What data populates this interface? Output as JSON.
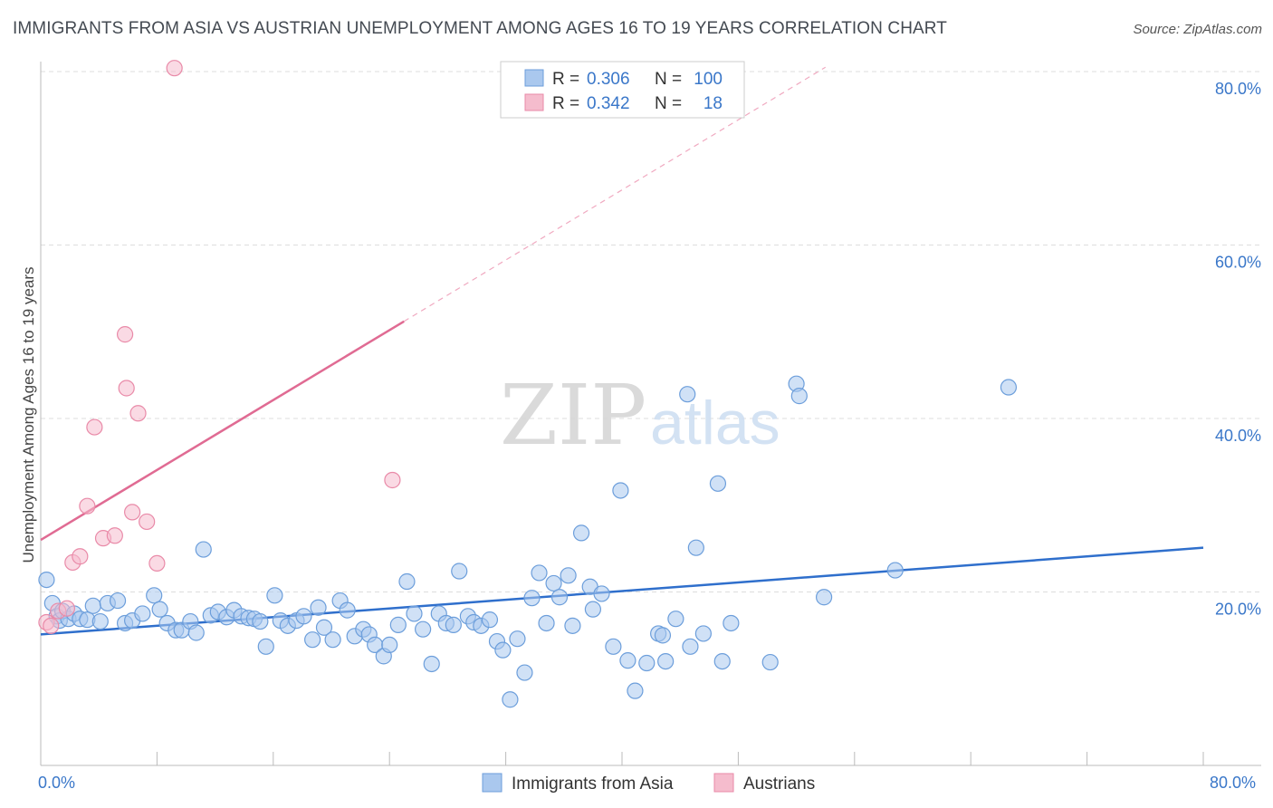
{
  "header": {
    "title": "IMMIGRANTS FROM ASIA VS AUSTRIAN UNEMPLOYMENT AMONG AGES 16 TO 19 YEARS CORRELATION CHART",
    "source": "Source: ZipAtlas.com"
  },
  "watermark": {
    "zip": "ZIP",
    "atlas": "atlas"
  },
  "colors": {
    "blue_fill": "#aac8ee",
    "blue_stroke": "#6c9edb",
    "blue_line": "#2f6fcc",
    "pink_fill": "#f5bccd",
    "pink_stroke": "#e98aa8",
    "pink_line": "#e06b93",
    "tick_label": "#3a77c9",
    "grid": "#dddddd"
  },
  "legend": {
    "rows": [
      {
        "r_label": "R =",
        "r_value": "0.306",
        "n_label": "N =",
        "n_value": "100"
      },
      {
        "r_label": "R =",
        "r_value": "0.342",
        "n_label": "N =",
        "n_value": "18"
      }
    ]
  },
  "chart_data": {
    "type": "scatter",
    "title": "IMMIGRANTS FROM ASIA VS AUSTRIAN UNEMPLOYMENT AMONG AGES 16 TO 19 YEARS CORRELATION CHART",
    "xlabel": "",
    "ylabel": "Unemployment Among Ages 16 to 19 years",
    "xlim": [
      0,
      80
    ],
    "ylim": [
      0,
      80
    ],
    "x_tick_labels": {
      "min": "0.0%",
      "max": "80.0%"
    },
    "y_ticks": [
      20,
      40,
      60,
      80
    ],
    "y_tick_labels": [
      "20.0%",
      "40.0%",
      "60.0%",
      "80.0%"
    ],
    "series": [
      {
        "name": "Immigrants from Asia",
        "color": "#aac8ee",
        "r": 0.306,
        "n": 100,
        "trend": {
          "x0": 0,
          "y0": 15.1,
          "x1": 80,
          "y1": 25.1
        },
        "points": [
          [
            0.4,
            21.4
          ],
          [
            0.8,
            18.7
          ],
          [
            1.1,
            17.2
          ],
          [
            1.3,
            16.7
          ],
          [
            1.5,
            17.8
          ],
          [
            1.9,
            16.9
          ],
          [
            2.3,
            17.5
          ],
          [
            2.7,
            16.9
          ],
          [
            3.2,
            16.8
          ],
          [
            3.6,
            18.4
          ],
          [
            4.1,
            16.6
          ],
          [
            4.6,
            18.7
          ],
          [
            5.3,
            19.0
          ],
          [
            5.8,
            16.4
          ],
          [
            6.3,
            16.7
          ],
          [
            7.0,
            17.5
          ],
          [
            7.8,
            19.6
          ],
          [
            8.2,
            18.0
          ],
          [
            8.7,
            16.4
          ],
          [
            9.3,
            15.6
          ],
          [
            9.7,
            15.6
          ],
          [
            10.3,
            16.6
          ],
          [
            10.7,
            15.3
          ],
          [
            11.2,
            24.9
          ],
          [
            11.7,
            17.3
          ],
          [
            12.2,
            17.7
          ],
          [
            12.8,
            17.1
          ],
          [
            13.3,
            17.9
          ],
          [
            13.8,
            17.2
          ],
          [
            14.3,
            17.0
          ],
          [
            14.7,
            16.9
          ],
          [
            15.1,
            16.6
          ],
          [
            15.5,
            13.7
          ],
          [
            16.1,
            19.6
          ],
          [
            16.5,
            16.7
          ],
          [
            17.0,
            16.1
          ],
          [
            17.6,
            16.7
          ],
          [
            18.1,
            17.2
          ],
          [
            18.7,
            14.5
          ],
          [
            19.1,
            18.2
          ],
          [
            19.5,
            15.9
          ],
          [
            20.1,
            14.5
          ],
          [
            20.6,
            19.0
          ],
          [
            21.1,
            17.9
          ],
          [
            21.6,
            14.9
          ],
          [
            22.2,
            15.7
          ],
          [
            22.6,
            15.1
          ],
          [
            23.0,
            13.9
          ],
          [
            23.6,
            12.6
          ],
          [
            24.0,
            13.9
          ],
          [
            24.6,
            16.2
          ],
          [
            25.2,
            21.2
          ],
          [
            25.7,
            17.5
          ],
          [
            26.3,
            15.7
          ],
          [
            26.9,
            11.7
          ],
          [
            27.4,
            17.5
          ],
          [
            27.9,
            16.4
          ],
          [
            28.4,
            16.2
          ],
          [
            28.8,
            22.4
          ],
          [
            29.4,
            17.2
          ],
          [
            29.8,
            16.5
          ],
          [
            30.3,
            16.1
          ],
          [
            30.9,
            16.8
          ],
          [
            31.4,
            14.3
          ],
          [
            31.8,
            13.3
          ],
          [
            32.3,
            7.6
          ],
          [
            32.8,
            14.6
          ],
          [
            33.3,
            10.7
          ],
          [
            33.8,
            19.3
          ],
          [
            34.3,
            22.2
          ],
          [
            34.8,
            16.4
          ],
          [
            35.3,
            21.0
          ],
          [
            35.7,
            19.4
          ],
          [
            36.3,
            21.9
          ],
          [
            36.6,
            16.1
          ],
          [
            37.2,
            26.8
          ],
          [
            37.8,
            20.6
          ],
          [
            38.0,
            18.0
          ],
          [
            38.6,
            19.8
          ],
          [
            39.4,
            13.7
          ],
          [
            39.9,
            31.7
          ],
          [
            40.4,
            12.1
          ],
          [
            40.9,
            8.6
          ],
          [
            41.7,
            11.8
          ],
          [
            42.5,
            15.2
          ],
          [
            42.8,
            15.0
          ],
          [
            43.0,
            12.0
          ],
          [
            43.7,
            16.9
          ],
          [
            44.5,
            42.8
          ],
          [
            44.7,
            13.7
          ],
          [
            45.1,
            25.1
          ],
          [
            45.6,
            15.2
          ],
          [
            46.6,
            32.5
          ],
          [
            46.9,
            12.0
          ],
          [
            47.5,
            16.4
          ],
          [
            50.2,
            11.9
          ],
          [
            52.0,
            44.0
          ],
          [
            52.2,
            42.6
          ],
          [
            53.9,
            19.4
          ],
          [
            58.8,
            22.5
          ],
          [
            66.6,
            43.6
          ]
        ]
      },
      {
        "name": "Austrians",
        "color": "#f5bccd",
        "r": 0.342,
        "n": 18,
        "trend": {
          "x0": 0,
          "y0": 26.0,
          "x1": 25,
          "y1": 51.2
        },
        "trend_ext": {
          "x0": 25,
          "y0": 51.2,
          "x1": 54,
          "y1": 80.5
        },
        "points": [
          [
            0.4,
            16.5
          ],
          [
            0.7,
            16.1
          ],
          [
            1.2,
            17.8
          ],
          [
            1.8,
            18.1
          ],
          [
            2.2,
            23.4
          ],
          [
            2.7,
            24.1
          ],
          [
            3.2,
            29.9
          ],
          [
            3.7,
            39.0
          ],
          [
            4.3,
            26.2
          ],
          [
            5.1,
            26.5
          ],
          [
            5.8,
            49.7
          ],
          [
            5.9,
            43.5
          ],
          [
            6.3,
            29.2
          ],
          [
            6.7,
            40.6
          ],
          [
            7.3,
            28.1
          ],
          [
            8.0,
            23.3
          ],
          [
            9.2,
            80.4
          ],
          [
            24.2,
            32.9
          ]
        ]
      }
    ]
  },
  "bottom_legend": {
    "items": [
      {
        "label": "Immigrants from Asia"
      },
      {
        "label": "Austrians"
      }
    ]
  }
}
